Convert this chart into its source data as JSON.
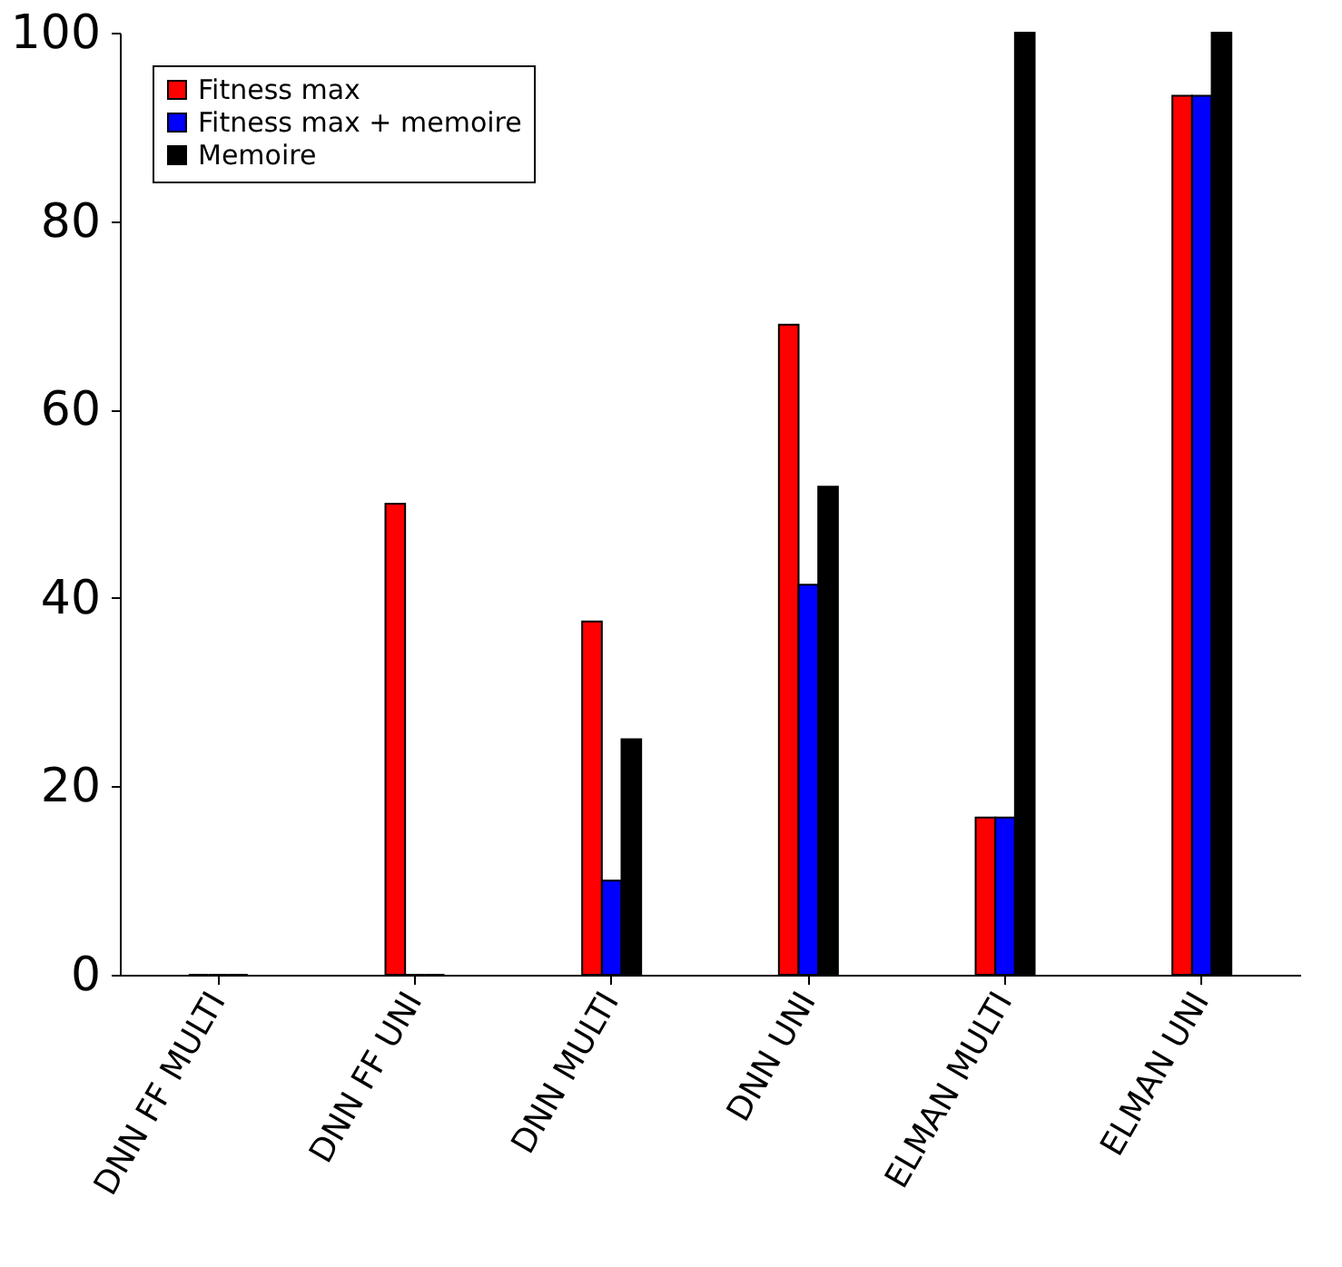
{
  "chart_data": {
    "type": "bar",
    "categories": [
      "DNN FF MULTI",
      "DNN FF UNI",
      "DNN MULTI",
      "DNN UNI",
      "ELMAN MULTI",
      "ELMAN UNI"
    ],
    "series": [
      {
        "name": "Fitness max",
        "color": "#ff0000",
        "values": [
          0,
          50,
          37.5,
          69,
          16.7,
          93.3
        ]
      },
      {
        "name": "Fitness max + memoire",
        "color": "#0000ff",
        "values": [
          0,
          0,
          10,
          41.4,
          16.7,
          93.3
        ]
      },
      {
        "name": "Memoire",
        "color": "#000000",
        "values": [
          0,
          0,
          25,
          51.8,
          100,
          100
        ]
      }
    ],
    "ylim": [
      0,
      100
    ],
    "yticks": [
      0,
      20,
      40,
      60,
      80,
      100
    ],
    "grid": false,
    "legend": "top left"
  }
}
